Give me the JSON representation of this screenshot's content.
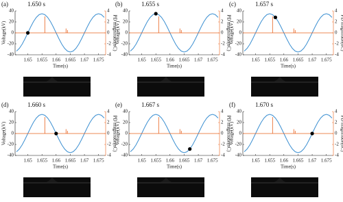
{
  "chart_data": [
    {
      "type": "line",
      "label": "(a)",
      "title": "1.650 s",
      "xlabel": "Time(s)",
      "ylabel": "Voltage(kV)",
      "y2label": "PD magnitude(nC)",
      "y2color": "#e8601c",
      "xlim": [
        1.6455,
        1.6775
      ],
      "xticks": [
        1.65,
        1.655,
        1.66,
        1.665,
        1.67,
        1.675
      ],
      "ylim": [
        -40,
        40
      ],
      "yticks": [
        -40,
        -20,
        0,
        20,
        40
      ],
      "y2lim": [
        -4,
        4
      ],
      "y2ticks": [
        -4,
        -2,
        0,
        2,
        4
      ],
      "x": [
        1.646,
        1.647,
        1.648,
        1.649,
        1.65,
        1.651,
        1.652,
        1.653,
        1.654,
        1.655,
        1.656,
        1.657,
        1.658,
        1.659,
        1.66,
        1.661,
        1.662,
        1.663,
        1.664,
        1.665,
        1.666,
        1.667,
        1.668,
        1.669,
        1.67,
        1.671,
        1.672,
        1.673,
        1.674,
        1.675,
        1.676,
        1.677
      ],
      "series": [
        {
          "color": "#3b8fd1",
          "values": [
            -33.3,
            -28.3,
            -20.6,
            -10.8,
            0,
            10.8,
            20.6,
            28.3,
            33.3,
            35,
            33.3,
            28.3,
            20.6,
            10.8,
            0,
            -10.8,
            -20.6,
            -28.3,
            -33.3,
            -35,
            -33.3,
            -28.3,
            -20.6,
            -10.8,
            0,
            10.8,
            20.6,
            28.3,
            33.3,
            35,
            33.3,
            28.3
          ]
        },
        {
          "color": "#e8601c",
          "axis": "y2",
          "style": "stem",
          "x": [
            1.656,
            1.6635,
            1.664
          ],
          "values": [
            3,
            0.8,
            0.5
          ]
        }
      ],
      "marker": {
        "x": 1.65,
        "y": 0
      }
    },
    {
      "type": "line",
      "label": "(b)",
      "title": "1.655 s",
      "xlabel": "Time(s)",
      "ylabel": "Voltage(kV)",
      "y2label": "PD magnitude(nC)",
      "y2color": "#e8601c",
      "xlim": [
        1.6455,
        1.6775
      ],
      "xticks": [
        1.65,
        1.655,
        1.66,
        1.665,
        1.67,
        1.675
      ],
      "ylim": [
        -40,
        40
      ],
      "yticks": [
        -40,
        -20,
        0,
        20,
        40
      ],
      "y2lim": [
        -4,
        4
      ],
      "y2ticks": [
        -4,
        -2,
        0,
        2,
        4
      ],
      "x": [
        1.646,
        1.647,
        1.648,
        1.649,
        1.65,
        1.651,
        1.652,
        1.653,
        1.654,
        1.655,
        1.656,
        1.657,
        1.658,
        1.659,
        1.66,
        1.661,
        1.662,
        1.663,
        1.664,
        1.665,
        1.666,
        1.667,
        1.668,
        1.669,
        1.67,
        1.671,
        1.672,
        1.673,
        1.674,
        1.675,
        1.676,
        1.677
      ],
      "series": [
        {
          "color": "#3b8fd1",
          "values": [
            -33.3,
            -28.3,
            -20.6,
            -10.8,
            0,
            10.8,
            20.6,
            28.3,
            33.3,
            35,
            33.3,
            28.3,
            20.6,
            10.8,
            0,
            -10.8,
            -20.6,
            -28.3,
            -33.3,
            -35,
            -33.3,
            -28.3,
            -20.6,
            -10.8,
            0,
            10.8,
            20.6,
            28.3,
            33.3,
            35,
            33.3,
            28.3
          ]
        },
        {
          "color": "#e8601c",
          "axis": "y2",
          "style": "stem",
          "x": [
            1.656,
            1.6635,
            1.664
          ],
          "values": [
            3,
            0.8,
            0.5
          ]
        }
      ],
      "marker": {
        "x": 1.655,
        "y": 35
      }
    },
    {
      "type": "line",
      "label": "(c)",
      "title": "1.657 s",
      "xlabel": "Time(s)",
      "ylabel": "Voltage(kV)",
      "y2label": "PD magnitude(nC)",
      "y2color": "#e8601c",
      "xlim": [
        1.6455,
        1.6775
      ],
      "xticks": [
        1.65,
        1.655,
        1.66,
        1.665,
        1.67,
        1.675
      ],
      "ylim": [
        -40,
        40
      ],
      "yticks": [
        -40,
        -20,
        0,
        20,
        40
      ],
      "y2lim": [
        -4,
        4
      ],
      "y2ticks": [
        -4,
        -2,
        0,
        2,
        4
      ],
      "x": [
        1.646,
        1.647,
        1.648,
        1.649,
        1.65,
        1.651,
        1.652,
        1.653,
        1.654,
        1.655,
        1.656,
        1.657,
        1.658,
        1.659,
        1.66,
        1.661,
        1.662,
        1.663,
        1.664,
        1.665,
        1.666,
        1.667,
        1.668,
        1.669,
        1.67,
        1.671,
        1.672,
        1.673,
        1.674,
        1.675,
        1.676,
        1.677
      ],
      "series": [
        {
          "color": "#3b8fd1",
          "values": [
            -33.3,
            -28.3,
            -20.6,
            -10.8,
            0,
            10.8,
            20.6,
            28.3,
            33.3,
            35,
            33.3,
            28.3,
            20.6,
            10.8,
            0,
            -10.8,
            -20.6,
            -28.3,
            -33.3,
            -35,
            -33.3,
            -28.3,
            -20.6,
            -10.8,
            0,
            10.8,
            20.6,
            28.3,
            33.3,
            35,
            33.3,
            28.3
          ]
        },
        {
          "color": "#e8601c",
          "axis": "y2",
          "style": "stem",
          "x": [
            1.656,
            1.6635,
            1.664
          ],
          "values": [
            3,
            0.8,
            0.5
          ]
        }
      ],
      "marker": {
        "x": 1.657,
        "y": 28.3
      }
    },
    {
      "type": "line",
      "label": "(d)",
      "title": "1.660 s",
      "xlabel": "Time(s)",
      "ylabel": "Voltage(kV)",
      "y2label": "PD magnitude(nC)",
      "y2color": "#e8601c",
      "xlim": [
        1.6455,
        1.6775
      ],
      "xticks": [
        1.65,
        1.655,
        1.66,
        1.665,
        1.67,
        1.675
      ],
      "ylim": [
        -40,
        40
      ],
      "yticks": [
        -40,
        -20,
        0,
        20,
        40
      ],
      "y2lim": [
        -4,
        4
      ],
      "y2ticks": [
        -4,
        -2,
        0,
        2,
        4
      ],
      "x": [
        1.646,
        1.647,
        1.648,
        1.649,
        1.65,
        1.651,
        1.652,
        1.653,
        1.654,
        1.655,
        1.656,
        1.657,
        1.658,
        1.659,
        1.66,
        1.661,
        1.662,
        1.663,
        1.664,
        1.665,
        1.666,
        1.667,
        1.668,
        1.669,
        1.67,
        1.671,
        1.672,
        1.673,
        1.674,
        1.675,
        1.676,
        1.677
      ],
      "series": [
        {
          "color": "#3b8fd1",
          "values": [
            -33.3,
            -28.3,
            -20.6,
            -10.8,
            0,
            10.8,
            20.6,
            28.3,
            33.3,
            35,
            33.3,
            28.3,
            20.6,
            10.8,
            0,
            -10.8,
            -20.6,
            -28.3,
            -33.3,
            -35,
            -33.3,
            -28.3,
            -20.6,
            -10.8,
            0,
            10.8,
            20.6,
            28.3,
            33.3,
            35,
            33.3,
            28.3
          ]
        },
        {
          "color": "#e8601c",
          "axis": "y2",
          "style": "stem",
          "x": [
            1.656,
            1.6635,
            1.664
          ],
          "values": [
            3,
            0.8,
            0.5
          ]
        }
      ],
      "marker": {
        "x": 1.66,
        "y": 0
      }
    },
    {
      "type": "line",
      "label": "(e)",
      "title": "1.667 s",
      "xlabel": "Time(s)",
      "ylabel": "Voltage(kV)",
      "y2label": "PD magnitude(nC)",
      "y2color": "#e8601c",
      "xlim": [
        1.6455,
        1.6775
      ],
      "xticks": [
        1.65,
        1.655,
        1.66,
        1.665,
        1.67,
        1.675
      ],
      "ylim": [
        -40,
        40
      ],
      "yticks": [
        -40,
        -20,
        0,
        20,
        40
      ],
      "y2lim": [
        -4,
        4
      ],
      "y2ticks": [
        -4,
        -2,
        0,
        2,
        4
      ],
      "x": [
        1.646,
        1.647,
        1.648,
        1.649,
        1.65,
        1.651,
        1.652,
        1.653,
        1.654,
        1.655,
        1.656,
        1.657,
        1.658,
        1.659,
        1.66,
        1.661,
        1.662,
        1.663,
        1.664,
        1.665,
        1.666,
        1.667,
        1.668,
        1.669,
        1.67,
        1.671,
        1.672,
        1.673,
        1.674,
        1.675,
        1.676,
        1.677
      ],
      "series": [
        {
          "color": "#3b8fd1",
          "values": [
            -33.3,
            -28.3,
            -20.6,
            -10.8,
            0,
            10.8,
            20.6,
            28.3,
            33.3,
            35,
            33.3,
            28.3,
            20.6,
            10.8,
            0,
            -10.8,
            -20.6,
            -28.3,
            -33.3,
            -35,
            -33.3,
            -28.3,
            -20.6,
            -10.8,
            0,
            10.8,
            20.6,
            28.3,
            33.3,
            35,
            33.3,
            28.3
          ]
        },
        {
          "color": "#e8601c",
          "axis": "y2",
          "style": "stem",
          "x": [
            1.656,
            1.6635,
            1.664
          ],
          "values": [
            3,
            0.8,
            0.5
          ]
        }
      ],
      "marker": {
        "x": 1.667,
        "y": -28.3
      }
    },
    {
      "type": "line",
      "label": "(f)",
      "title": "1.670 s",
      "xlabel": "Time(s)",
      "ylabel": "Voltage(kV)",
      "y2label": "PD magnitude(nC)",
      "y2color": "#e8601c",
      "xlim": [
        1.6455,
        1.6775
      ],
      "xticks": [
        1.65,
        1.655,
        1.66,
        1.665,
        1.67,
        1.675
      ],
      "ylim": [
        -40,
        40
      ],
      "yticks": [
        -40,
        -20,
        0,
        20,
        40
      ],
      "y2lim": [
        -4,
        4
      ],
      "y2ticks": [
        -4,
        -2,
        0,
        2,
        4
      ],
      "x": [
        1.646,
        1.647,
        1.648,
        1.649,
        1.65,
        1.651,
        1.652,
        1.653,
        1.654,
        1.655,
        1.656,
        1.657,
        1.658,
        1.659,
        1.66,
        1.661,
        1.662,
        1.663,
        1.664,
        1.665,
        1.666,
        1.667,
        1.668,
        1.669,
        1.67,
        1.671,
        1.672,
        1.673,
        1.674,
        1.675,
        1.676,
        1.677
      ],
      "series": [
        {
          "color": "#3b8fd1",
          "values": [
            -33.3,
            -28.3,
            -20.6,
            -10.8,
            0,
            10.8,
            20.6,
            28.3,
            33.3,
            35,
            33.3,
            28.3,
            20.6,
            10.8,
            0,
            -10.8,
            -20.6,
            -28.3,
            -33.3,
            -35,
            -33.3,
            -28.3,
            -20.6,
            -10.8,
            0,
            10.8,
            20.6,
            28.3,
            33.3,
            35,
            33.3,
            28.3
          ]
        },
        {
          "color": "#e8601c",
          "axis": "y2",
          "style": "stem",
          "x": [
            1.656,
            1.6635,
            1.664
          ],
          "values": [
            3,
            0.8,
            0.5
          ]
        }
      ],
      "marker": {
        "x": 1.67,
        "y": 0
      }
    }
  ]
}
